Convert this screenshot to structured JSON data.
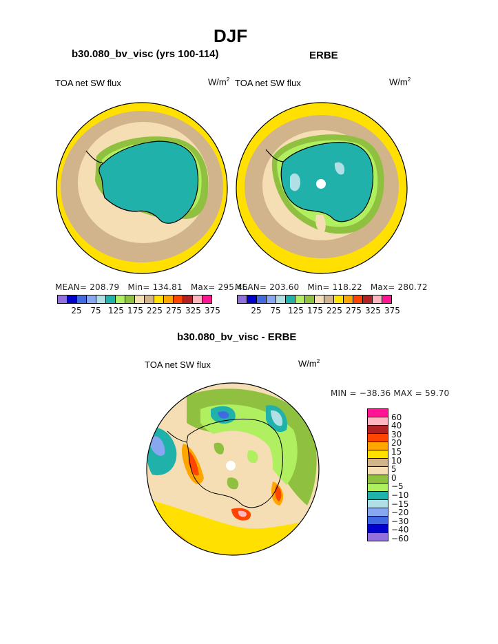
{
  "title": "DJF",
  "left_panel": {
    "header": "b30.080_bv_visc (yrs 100-114)",
    "label": "TOA net SW flux",
    "units_base": "W/m",
    "units_exp": "2",
    "mean_text": "MEAN= 208.79",
    "min_text": "Min= 134.81",
    "max_text": "Max= 295.46"
  },
  "right_panel": {
    "header": "ERBE",
    "label": "TOA net SW flux",
    "units_base": "W/m",
    "units_exp": "2",
    "mean_text": "MEAN= 203.60",
    "min_text": "Min= 118.22",
    "max_text": "Max= 280.72"
  },
  "top_colorbar": {
    "colors": [
      "#9370DB",
      "#0000CD",
      "#4169E1",
      "#87A8F0",
      "#B0E0E6",
      "#20B2AA",
      "#B0F060",
      "#90C040",
      "#F5DEB3",
      "#D2B48C",
      "#FFE000",
      "#FFA500",
      "#FF4500",
      "#B22222",
      "#FFB6C1",
      "#FF1493"
    ],
    "labels": [
      "25",
      "75",
      "125",
      "175",
      "225",
      "275",
      "325",
      "375"
    ]
  },
  "diff_panel": {
    "header": "b30.080_bv_visc - ERBE",
    "label": "TOA net SW flux",
    "units_base": "W/m",
    "units_exp": "2",
    "minmax_text": "MIN = −38.36 MAX =  59.70",
    "colorbar": {
      "colors": [
        "#FF1493",
        "#FFB6C1",
        "#B22222",
        "#FF4500",
        "#FFA500",
        "#FFE000",
        "#D2B48C",
        "#F5DEB3",
        "#90C040",
        "#B0F060",
        "#20B2AA",
        "#B0E0E6",
        "#87A8F0",
        "#4169E1",
        "#0000CD",
        "#9370DB"
      ],
      "labels": [
        "60",
        "40",
        "30",
        "20",
        "15",
        "10",
        "5",
        "0",
        "−5",
        "−10",
        "−15",
        "−20",
        "−30",
        "−40",
        "−60"
      ]
    }
  },
  "palette": {
    "yellow": "#FFE000",
    "tan": "#D2B48C",
    "wheat": "#F5DEB3",
    "green": "#90C040",
    "lightgreen": "#B0F060",
    "teal": "#20B2AA",
    "paleblue": "#B0E0E6",
    "orange": "#FFA500",
    "red": "#FF4500",
    "blue": "#4169E1"
  }
}
